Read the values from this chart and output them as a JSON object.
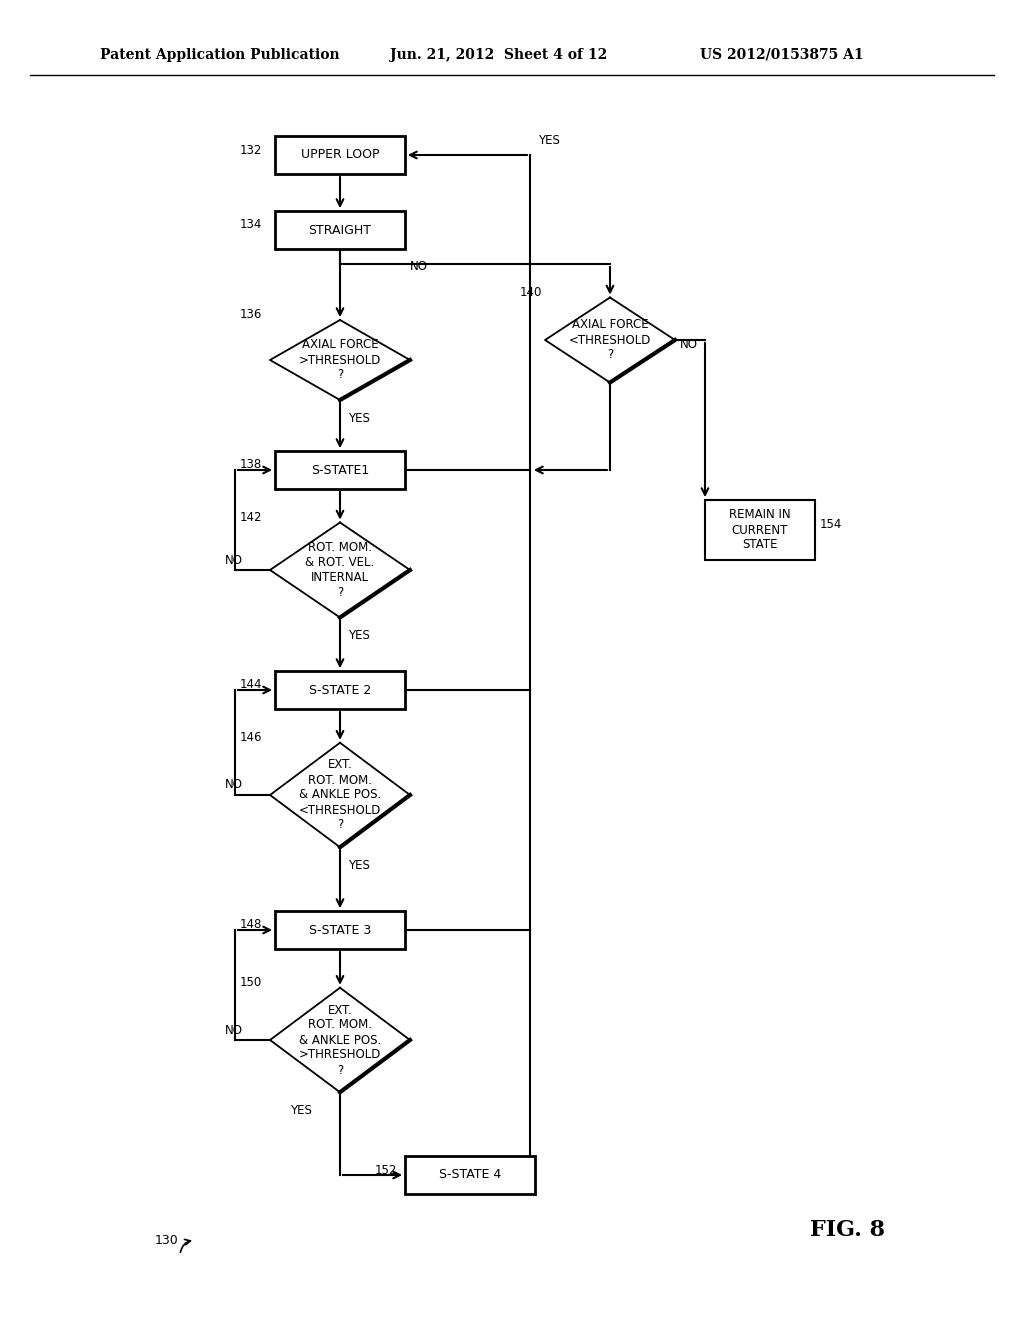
{
  "title_left": "Patent Application Publication",
  "title_mid": "Jun. 21, 2012  Sheet 4 of 12",
  "title_right": "US 2012/0153875 A1",
  "fig_label": "FIG. 8",
  "background_color": "#ffffff"
}
